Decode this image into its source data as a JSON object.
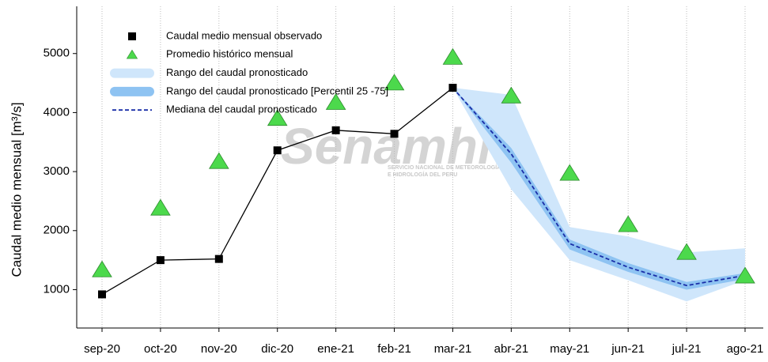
{
  "chart_data": {
    "type": "line",
    "ylabel": "Caudal medio mensual  [m³/s]",
    "watermark": {
      "title": "Senamhi",
      "subtitle": [
        "SERVICIO NACIONAL DE METEOROLOGÍA",
        "E HIDROLOGÍA DEL PERU"
      ]
    },
    "categories": [
      "sep-20",
      "oct-20",
      "nov-20",
      "dic-20",
      "ene-21",
      "feb-21",
      "mar-21",
      "abr-21",
      "may-21",
      "jun-21",
      "jul-21",
      "ago-21"
    ],
    "ylim": [
      350,
      5800
    ],
    "yticks": [
      1000,
      2000,
      3000,
      4000,
      5000
    ],
    "grid": "x",
    "legend": "upper-left",
    "series": [
      {
        "name": "Caudal medio mensual observado",
        "kind": "line-square",
        "color": "#000000",
        "values": [
          920,
          1500,
          1520,
          3360,
          3700,
          3640,
          4420,
          null,
          null,
          null,
          null,
          null
        ]
      },
      {
        "name": "Promedio histórico mensual",
        "kind": "triangle",
        "color": "#4cd94c",
        "values": [
          1335,
          2380,
          3170,
          3900,
          4170,
          4500,
          4935,
          4280,
          2970,
          2100,
          1630,
          1230
        ]
      },
      {
        "name": "Rango del caudal pronosticado",
        "kind": "band",
        "color": "#cfe6fb",
        "low": [
          null,
          null,
          null,
          null,
          null,
          null,
          4420,
          2700,
          1500,
          1160,
          800,
          1160
        ],
        "high": [
          null,
          null,
          null,
          null,
          null,
          null,
          4420,
          4300,
          2060,
          1900,
          1630,
          1700
        ]
      },
      {
        "name": "Rango del caudal pronosticado [Percentil 25 -75]",
        "kind": "band",
        "color": "#8ec3f2",
        "low": [
          null,
          null,
          null,
          null,
          null,
          null,
          4420,
          3150,
          1680,
          1300,
          1000,
          1180
        ],
        "high": [
          null,
          null,
          null,
          null,
          null,
          null,
          4420,
          3400,
          1850,
          1450,
          1130,
          1280
        ]
      },
      {
        "name": "Mediana del caudal pronosticado",
        "kind": "dashed",
        "color": "#1a2ea8",
        "values": [
          null,
          null,
          null,
          null,
          null,
          null,
          4420,
          3300,
          1780,
          1380,
          1070,
          1240
        ]
      }
    ]
  }
}
